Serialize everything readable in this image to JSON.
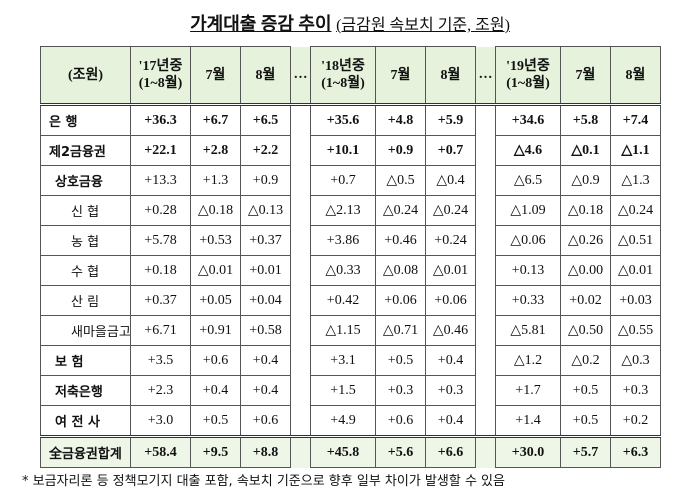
{
  "title": "가계대출 증감 추이",
  "title_note": "(금감원 속보치 기준, 조원)",
  "header": {
    "unit": "(조원)",
    "separator": "…",
    "groups": [
      {
        "year": "'17년중",
        "period": "(1~8월)",
        "months": [
          "7월",
          "8월"
        ]
      },
      {
        "year": "'18년중",
        "period": "(1~8월)",
        "months": [
          "7월",
          "8월"
        ]
      },
      {
        "year": "'19년중",
        "period": "(1~8월)",
        "months": [
          "7월",
          "8월"
        ]
      }
    ]
  },
  "rows": [
    {
      "label": "은 행",
      "values": [
        "+36.3",
        "+6.7",
        "+6.5",
        "+35.6",
        "+4.8",
        "+5.9",
        "+34.6",
        "+5.8",
        "+7.4"
      ]
    },
    {
      "label": "제2금융권",
      "values": [
        "+22.1",
        "+2.8",
        "+2.2",
        "+10.1",
        "+0.9",
        "+0.7",
        "△4.6",
        "△0.1",
        "△1.1"
      ]
    },
    {
      "label": "상호금융",
      "values": [
        "+13.3",
        "+1.3",
        "+0.9",
        "+0.7",
        "△0.5",
        "△0.4",
        "△6.5",
        "△0.9",
        "△1.3"
      ]
    },
    {
      "label": "신 협",
      "values": [
        "+0.28",
        "△0.18",
        "△0.13",
        "△2.13",
        "△0.24",
        "△0.24",
        "△1.09",
        "△0.18",
        "△0.24"
      ]
    },
    {
      "label": "농 협",
      "values": [
        "+5.78",
        "+0.53",
        "+0.37",
        "+3.86",
        "+0.46",
        "+0.24",
        "△0.06",
        "△0.26",
        "△0.51"
      ]
    },
    {
      "label": "수 협",
      "values": [
        "+0.18",
        "△0.01",
        "+0.01",
        "△0.33",
        "△0.08",
        "△0.01",
        "+0.13",
        "△0.00",
        "△0.01"
      ]
    },
    {
      "label": "산 림",
      "values": [
        "+0.37",
        "+0.05",
        "+0.04",
        "+0.42",
        "+0.06",
        "+0.06",
        "+0.33",
        "+0.02",
        "+0.03"
      ]
    },
    {
      "label": "새마을금고",
      "values": [
        "+6.71",
        "+0.91",
        "+0.58",
        "△1.15",
        "△0.71",
        "△0.46",
        "△5.81",
        "△0.50",
        "△0.55"
      ]
    },
    {
      "label": "보 험",
      "values": [
        "+3.5",
        "+0.6",
        "+0.4",
        "+3.1",
        "+0.5",
        "+0.4",
        "△1.2",
        "△0.2",
        "△0.3"
      ]
    },
    {
      "label": "저축은행",
      "values": [
        "+2.3",
        "+0.4",
        "+0.4",
        "+1.5",
        "+0.3",
        "+0.3",
        "+1.7",
        "+0.5",
        "+0.3"
      ]
    },
    {
      "label": "여 전 사",
      "values": [
        "+3.0",
        "+0.5",
        "+0.6",
        "+4.9",
        "+0.6",
        "+0.4",
        "+1.4",
        "+0.5",
        "+0.2"
      ]
    },
    {
      "label": "全금융권합계",
      "values": [
        "+58.4",
        "+9.5",
        "+8.8",
        "+45.8",
        "+5.6",
        "+6.6",
        "+30.0",
        "+5.7",
        "+6.3"
      ]
    }
  ],
  "footnote": "* 보금자리론 등 정책모기지 대출 포함, 속보치 기준으로 향후 일부 차이가 발생할 수 있음"
}
